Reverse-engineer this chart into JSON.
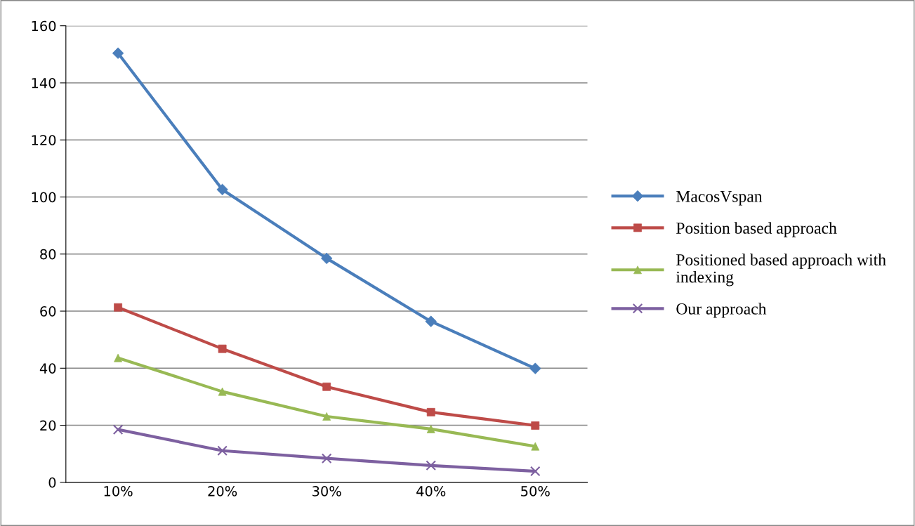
{
  "chart_data": {
    "type": "line",
    "categories": [
      "10%",
      "20%",
      "30%",
      "40%",
      "50%"
    ],
    "series": [
      {
        "name": "MacosVspan",
        "color": "#4a7ebb",
        "marker": "diamond",
        "values": [
          150.4,
          102.6,
          78.5,
          56.4,
          39.9
        ]
      },
      {
        "name": "Position based approach",
        "color": "#be4b48",
        "marker": "square",
        "values": [
          61.3,
          46.8,
          33.5,
          24.6,
          19.9
        ]
      },
      {
        "name": "Positioned based approach with indexing",
        "color": "#98b954",
        "marker": "triangle",
        "values": [
          43.6,
          31.8,
          23.1,
          18.7,
          12.6
        ]
      },
      {
        "name": "Our approach",
        "color": "#7d60a0",
        "marker": "cross",
        "values": [
          18.5,
          11.1,
          8.4,
          5.9,
          3.9
        ]
      }
    ],
    "ylim": [
      0,
      160
    ],
    "yticks": [
      0,
      20,
      40,
      60,
      80,
      100,
      120,
      140,
      160
    ],
    "grid": "y",
    "legend": "right",
    "line_style": "solid"
  }
}
